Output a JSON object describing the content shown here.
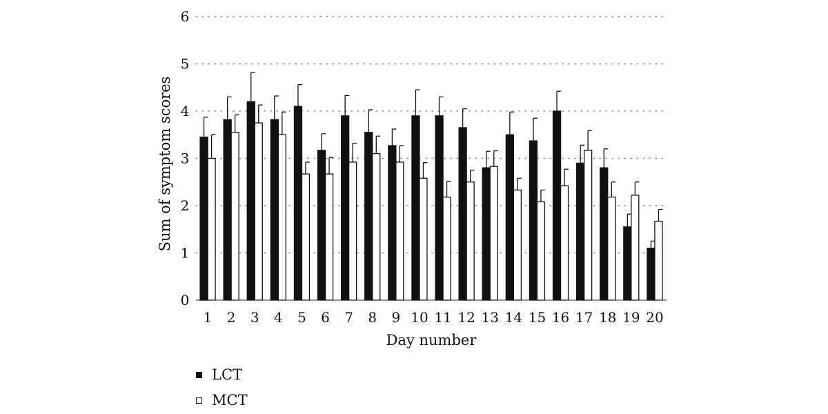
{
  "chart_data": {
    "type": "bar",
    "xlabel": "Day number",
    "ylabel": "Sum of symptom scores",
    "ylim": [
      0,
      6
    ],
    "yticks": [
      0,
      1,
      2,
      3,
      4,
      5,
      6
    ],
    "grid": "horizontal dotted",
    "legend_position": "bottom-left",
    "categories": [
      "1",
      "2",
      "3",
      "4",
      "5",
      "6",
      "7",
      "8",
      "9",
      "10",
      "11",
      "12",
      "13",
      "14",
      "15",
      "16",
      "17",
      "18",
      "19",
      "20"
    ],
    "series": [
      {
        "name": "LCT",
        "fill": "#111111",
        "values": [
          3.45,
          3.82,
          4.2,
          3.82,
          4.1,
          3.17,
          3.9,
          3.55,
          3.27,
          3.9,
          3.9,
          3.65,
          2.8,
          3.5,
          3.37,
          4.0,
          2.9,
          2.8,
          1.55,
          1.1
        ],
        "errors": [
          0.42,
          0.48,
          0.62,
          0.5,
          0.46,
          0.35,
          0.43,
          0.48,
          0.35,
          0.55,
          0.4,
          0.4,
          0.35,
          0.48,
          0.48,
          0.42,
          0.38,
          0.4,
          0.27,
          0.15
        ]
      },
      {
        "name": "MCT",
        "fill": "#ffffff",
        "values": [
          3.0,
          3.55,
          3.75,
          3.5,
          2.67,
          2.67,
          2.92,
          3.1,
          2.92,
          2.58,
          2.18,
          2.5,
          2.83,
          2.33,
          2.08,
          2.42,
          3.17,
          2.18,
          2.22,
          1.67
        ],
        "errors": [
          0.5,
          0.37,
          0.38,
          0.48,
          0.25,
          0.35,
          0.4,
          0.37,
          0.35,
          0.33,
          0.33,
          0.25,
          0.33,
          0.25,
          0.25,
          0.35,
          0.42,
          0.32,
          0.28,
          0.25
        ]
      }
    ]
  }
}
